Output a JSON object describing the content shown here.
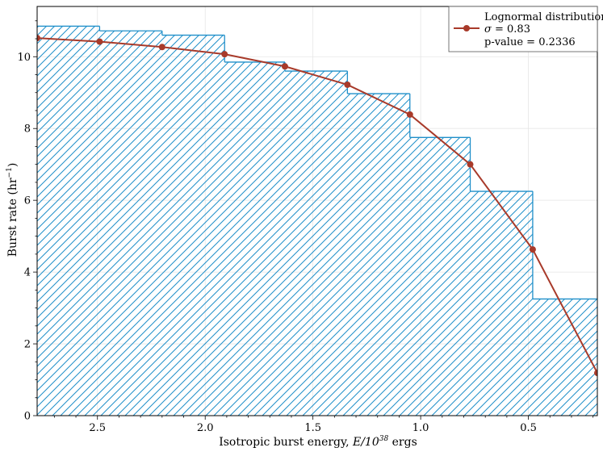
{
  "chart_data": {
    "type": "bar",
    "subtype": "step-histogram-with-line",
    "xlabel_prefix": "Isotropic burst energy, ",
    "xlabel_math": "E/10",
    "xlabel_exp": "38",
    "xlabel_suffix": " ergs",
    "ylabel_prefix": "Burst rate (hr",
    "ylabel_exp": "−1",
    "ylabel_suffix": ")",
    "x_axis_inverted": true,
    "xlim": [
      2.78,
      0.18
    ],
    "ylim": [
      0,
      11.4
    ],
    "x_ticks": [
      2.5,
      2.0,
      1.5,
      1.0,
      0.5
    ],
    "x_tick_labels": [
      "2.5",
      "2.0",
      "1.5",
      "1.0",
      "0.5"
    ],
    "y_ticks": [
      0,
      2,
      4,
      6,
      8,
      10
    ],
    "y_tick_labels": [
      "0",
      "2",
      "4",
      "6",
      "8",
      "10"
    ],
    "grid": true,
    "legend_position": "top-right",
    "histogram": {
      "color": "#1f8fc9",
      "hatch": "diagonal",
      "bins": [
        {
          "x_start": 2.78,
          "x_end": 2.49,
          "value": 10.85
        },
        {
          "x_start": 2.49,
          "x_end": 2.2,
          "value": 10.72
        },
        {
          "x_start": 2.2,
          "x_end": 1.91,
          "value": 10.6
        },
        {
          "x_start": 1.91,
          "x_end": 1.63,
          "value": 9.85
        },
        {
          "x_start": 1.63,
          "x_end": 1.34,
          "value": 9.6
        },
        {
          "x_start": 1.34,
          "x_end": 1.05,
          "value": 8.97
        },
        {
          "x_start": 1.05,
          "x_end": 0.77,
          "value": 7.75
        },
        {
          "x_start": 0.77,
          "x_end": 0.48,
          "value": 6.25
        },
        {
          "x_start": 0.48,
          "x_end": 0.18,
          "value": 3.25
        }
      ]
    },
    "series": [
      {
        "name": "Lognormal distribution",
        "color": "#a83a2a",
        "marker": "circle",
        "x": [
          2.78,
          2.49,
          2.2,
          1.91,
          1.63,
          1.34,
          1.05,
          0.77,
          0.48,
          0.18
        ],
        "y": [
          10.52,
          10.42,
          10.27,
          10.07,
          9.73,
          9.22,
          8.39,
          7.0,
          4.63,
          1.19
        ]
      }
    ],
    "legend": {
      "title": "Lognormal distribution",
      "sigma_symbol": "σ",
      "sigma_text": " = 0.83",
      "pvalue_text": "p-value = 0.2336"
    }
  }
}
